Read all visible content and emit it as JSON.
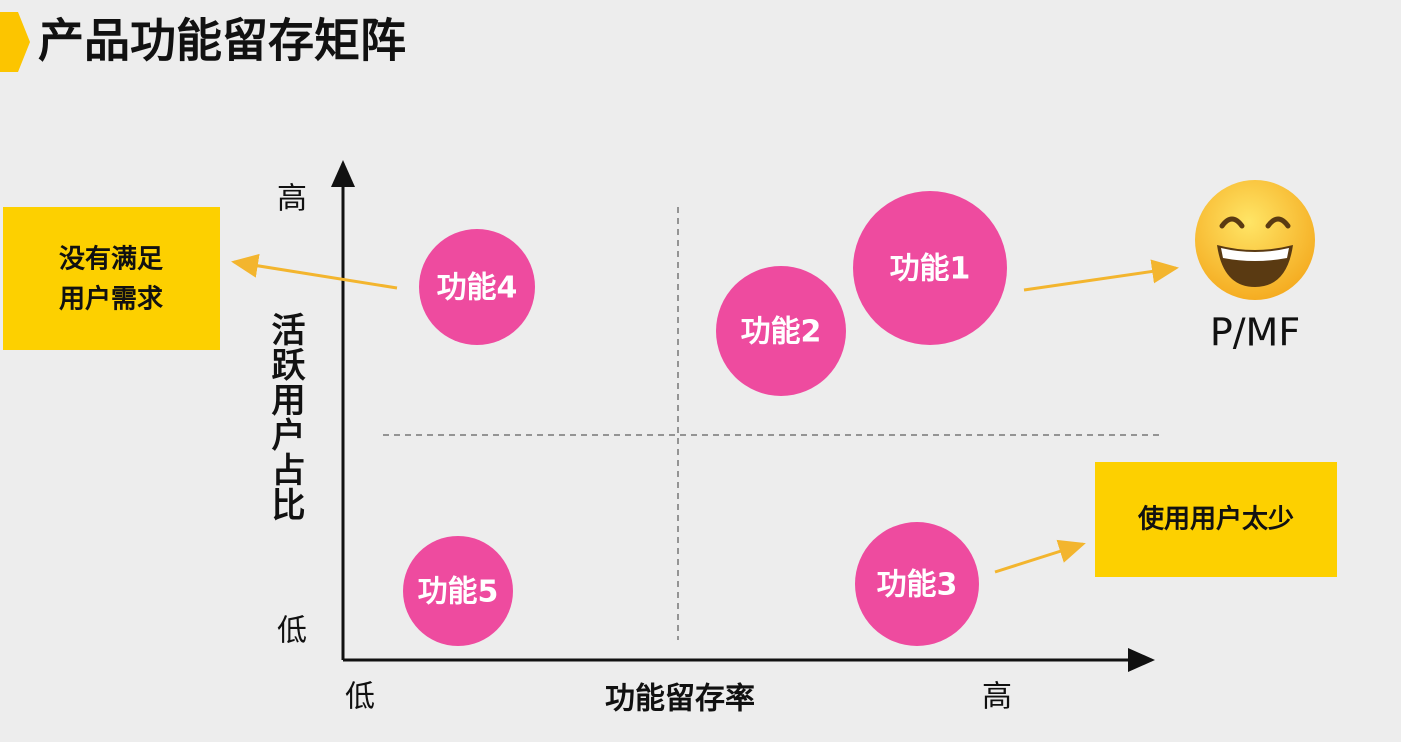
{
  "header": {
    "title": "产品功能留存矩阵"
  },
  "axes": {
    "y_label": "活跃用户占比",
    "y_high": "高",
    "y_low": "低",
    "x_label": "功能留存率",
    "x_low": "低",
    "x_high": "高"
  },
  "nodes": [
    {
      "label": "功能1"
    },
    {
      "label": "功能2"
    },
    {
      "label": "功能3"
    },
    {
      "label": "功能4"
    },
    {
      "label": "功能5"
    }
  ],
  "callouts": {
    "unmet_need": [
      "没有满足",
      "用户需求"
    ],
    "few_users": "使用用户太少",
    "pmf": "P/MF"
  }
}
